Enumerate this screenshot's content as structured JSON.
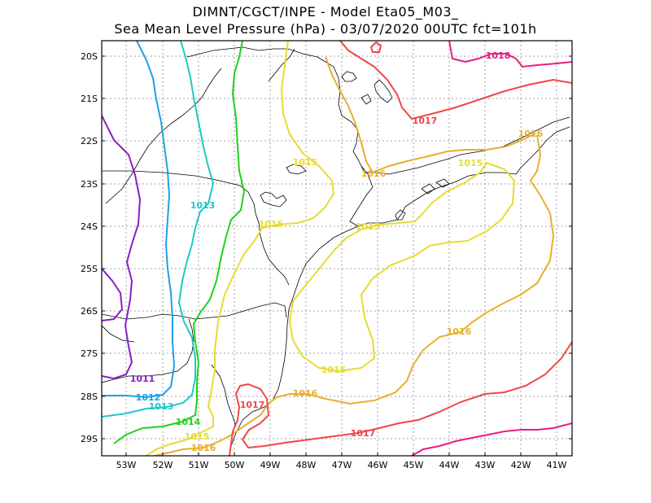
{
  "header": {
    "line1": "DIMNT/CGCT/INPE -   Model Eta05_M03_",
    "line2": "Sea Mean Level Pressure (hPa) - 03/07/2020 00UTC fct=101h"
  },
  "axes": {
    "lat_labels": [
      "20S",
      "21S",
      "22S",
      "23S",
      "24S",
      "25S",
      "26S",
      "27S",
      "28S",
      "29S"
    ],
    "lon_labels": [
      "53W",
      "52W",
      "51W",
      "50W",
      "49W",
      "48W",
      "47W",
      "46W",
      "45W",
      "44W",
      "43W",
      "42W",
      "41W"
    ]
  },
  "contours": [
    {
      "value": "1011",
      "color": "#8a1ec8"
    },
    {
      "value": "1012",
      "color": "#1ea0e6"
    },
    {
      "value": "1013",
      "color": "#1ec8c8"
    },
    {
      "value": "1014",
      "color": "#1ed21e"
    },
    {
      "value": "1015",
      "color": "#e6dc32"
    },
    {
      "value": "1016",
      "color": "#e6af2d"
    },
    {
      "value": "1017",
      "color": "#f04646"
    },
    {
      "value": "1018",
      "color": "#e61e82"
    }
  ],
  "colors": {
    "coast": "#000000",
    "grid": "#a0a0a0",
    "frame": "#000000"
  }
}
